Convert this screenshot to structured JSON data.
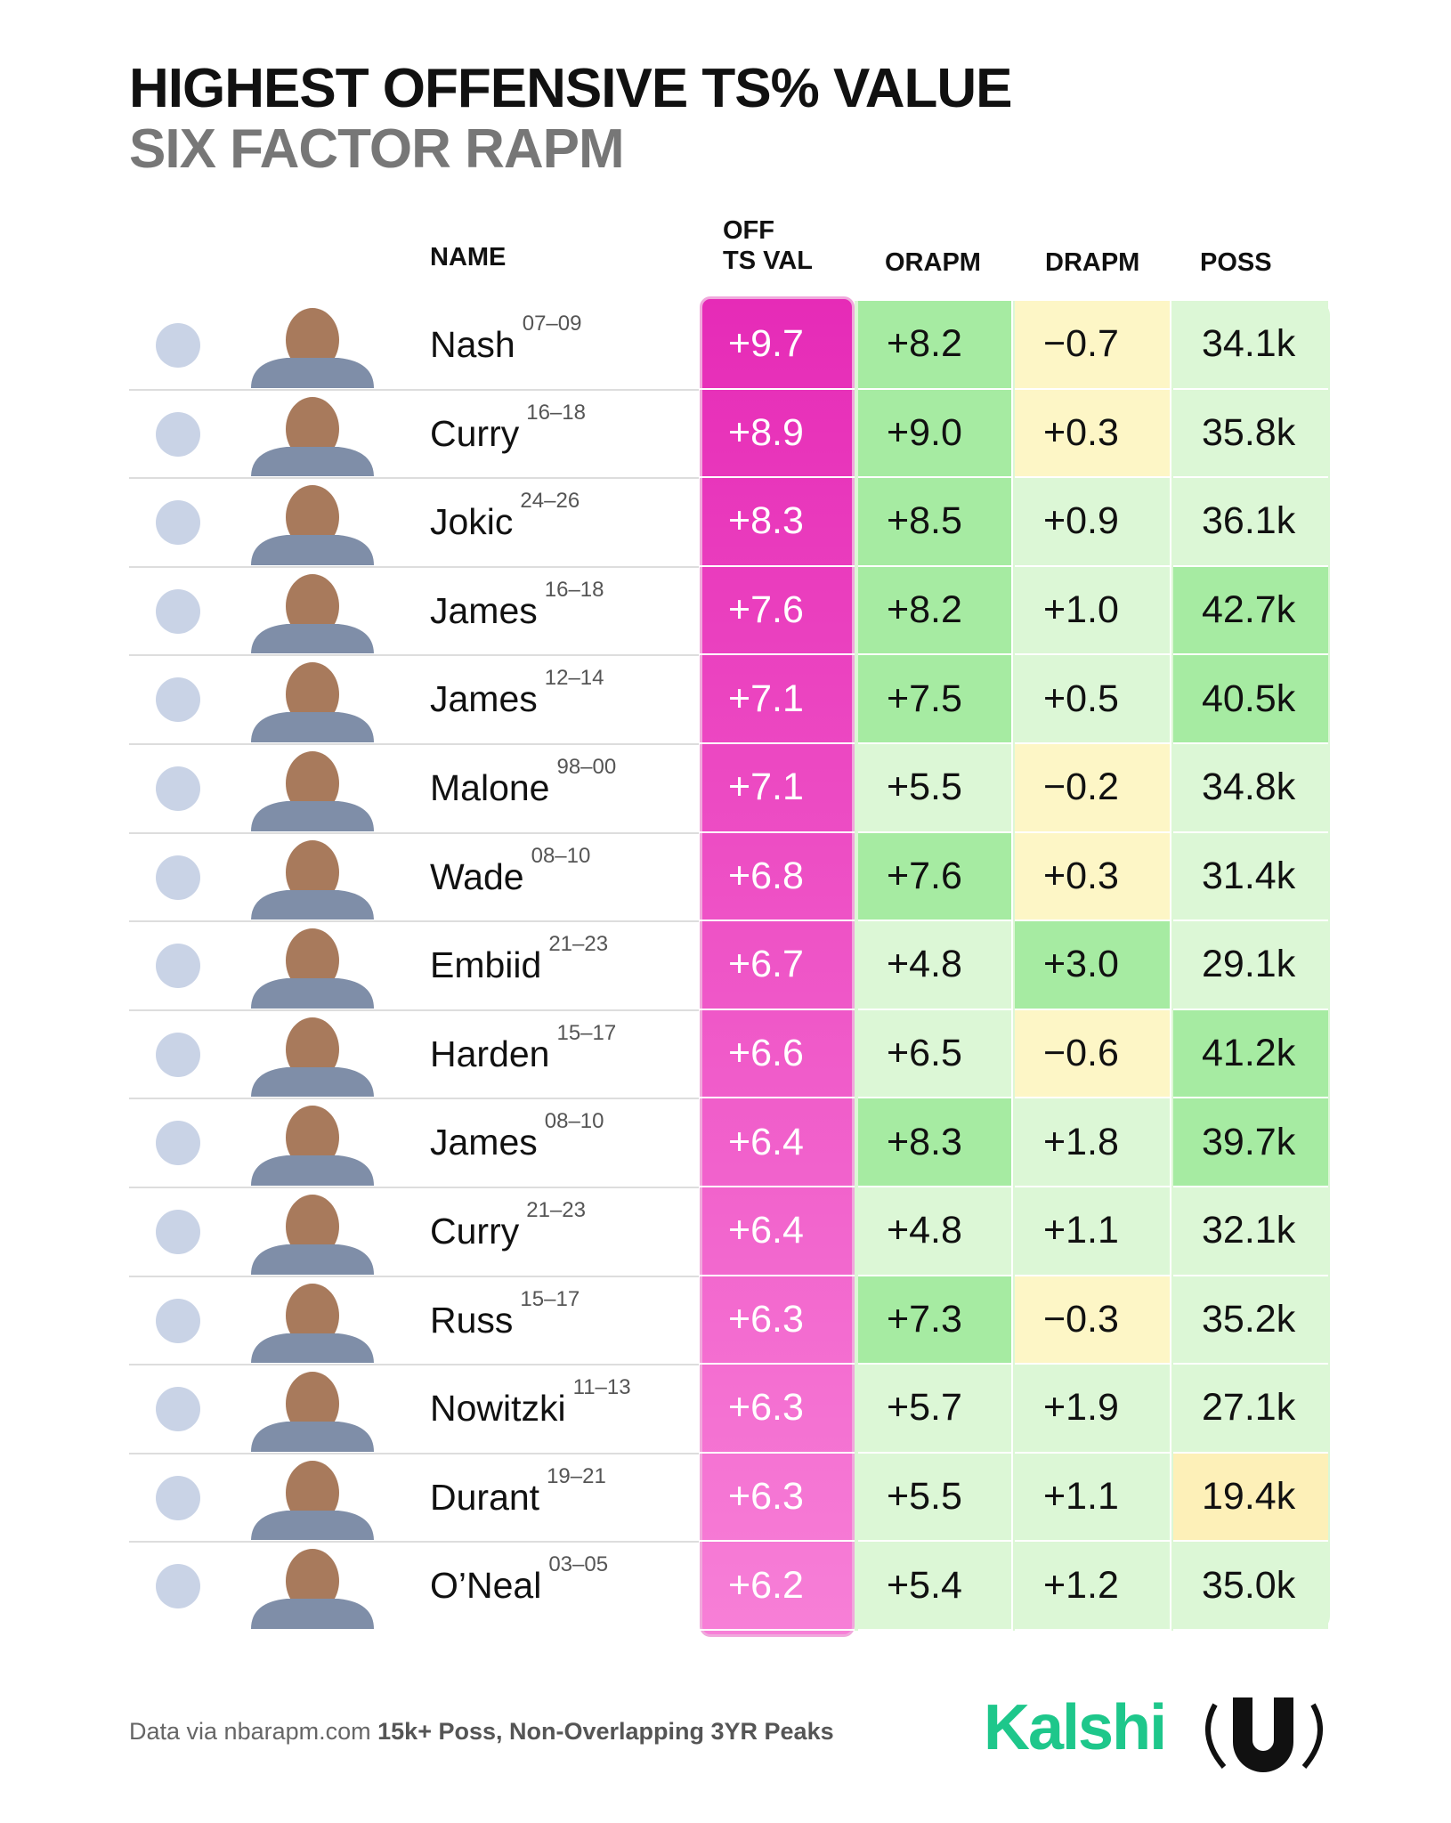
{
  "header": {
    "title": "HIGHEST OFFENSIVE TS% VALUE",
    "subtitle": "SIX FACTOR RAPM"
  },
  "table": {
    "columns": [
      "NAME",
      "OFF\nTS VAL",
      "ORAPM",
      "DRAPM",
      "POSS"
    ],
    "rows": [
      {
        "name": "Nash",
        "years": "07–09",
        "off": "+9.7",
        "orapm": "+8.2",
        "drapm": "−0.7",
        "poss": "34.1k"
      },
      {
        "name": "Curry",
        "years": "16–18",
        "off": "+8.9",
        "orapm": "+9.0",
        "drapm": "+0.3",
        "poss": "35.8k"
      },
      {
        "name": "Jokic",
        "years": "24–26",
        "off": "+8.3",
        "orapm": "+8.5",
        "drapm": "+0.9",
        "poss": "36.1k"
      },
      {
        "name": "James",
        "years": "16–18",
        "off": "+7.6",
        "orapm": "+8.2",
        "drapm": "+1.0",
        "poss": "42.7k"
      },
      {
        "name": "James",
        "years": "12–14",
        "off": "+7.1",
        "orapm": "+7.5",
        "drapm": "+0.5",
        "poss": "40.5k"
      },
      {
        "name": "Malone",
        "years": "98–00",
        "off": "+7.1",
        "orapm": "+5.5",
        "drapm": "−0.2",
        "poss": "34.8k"
      },
      {
        "name": "Wade",
        "years": "08–10",
        "off": "+6.8",
        "orapm": "+7.6",
        "drapm": "+0.3",
        "poss": "31.4k"
      },
      {
        "name": "Embiid",
        "years": "21–23",
        "off": "+6.7",
        "orapm": "+4.8",
        "drapm": "+3.0",
        "poss": "29.1k"
      },
      {
        "name": "Harden",
        "years": "15–17",
        "off": "+6.6",
        "orapm": "+6.5",
        "drapm": "−0.6",
        "poss": "41.2k"
      },
      {
        "name": "James",
        "years": "08–10",
        "off": "+6.4",
        "orapm": "+8.3",
        "drapm": "+1.8",
        "poss": "39.7k"
      },
      {
        "name": "Curry",
        "years": "21–23",
        "off": "+6.4",
        "orapm": "+4.8",
        "drapm": "+1.1",
        "poss": "32.1k"
      },
      {
        "name": "Russ",
        "years": "15–17",
        "off": "+6.3",
        "orapm": "+7.3",
        "drapm": "−0.3",
        "poss": "35.2k"
      },
      {
        "name": "Nowitzki",
        "years": "11–13",
        "off": "+6.3",
        "orapm": "+5.7",
        "drapm": "+1.9",
        "poss": "27.1k"
      },
      {
        "name": "Durant",
        "years": "19–21",
        "off": "+6.3",
        "orapm": "+5.5",
        "drapm": "+1.1",
        "poss": "19.4k"
      },
      {
        "name": "O’Neal",
        "years": "03–05",
        "off": "+6.2",
        "orapm": "+5.4",
        "drapm": "+1.2",
        "poss": "35.0k"
      }
    ]
  },
  "footer": {
    "source": "Data via nbarapm.com",
    "note": "15k+ Poss, Non-Overlapping 3YR Peaks",
    "brand": "Kalshi"
  }
}
